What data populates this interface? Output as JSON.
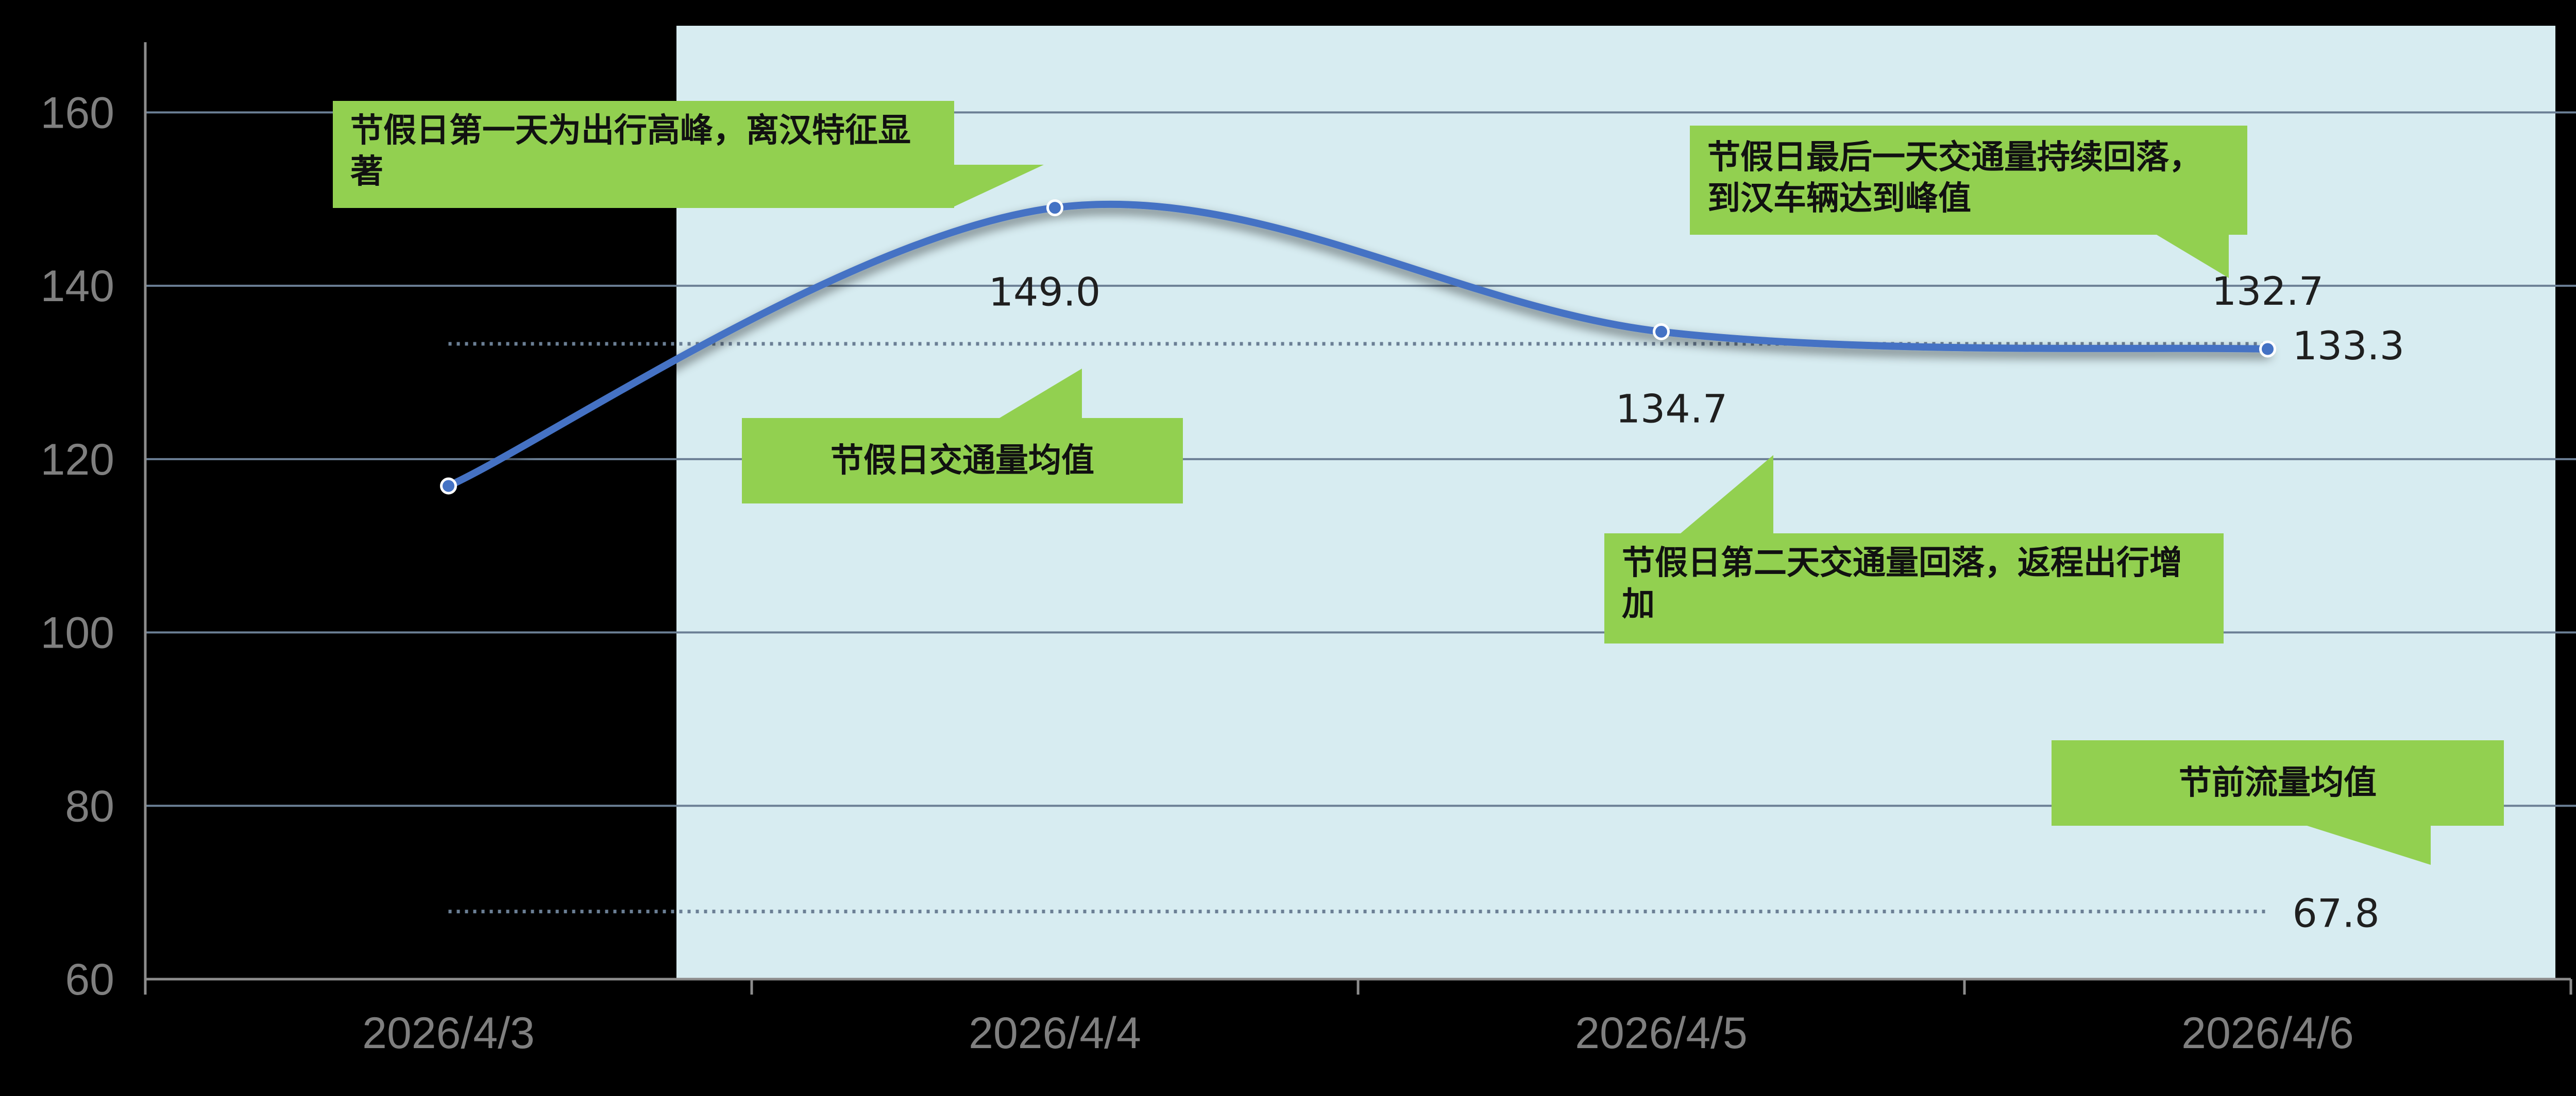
{
  "chart_data": {
    "type": "line",
    "categories": [
      "2026/4/3",
      "2026/4/4",
      "2026/4/5",
      "2026/4/6"
    ],
    "series": [
      {
        "values": [
          116.9,
          149.0,
          134.7,
          132.7
        ],
        "color": "#4472c4"
      }
    ],
    "reference_lines": [
      {
        "value": 133.3,
        "label": "133.3",
        "style": "dotted",
        "color": "#6b7f95"
      },
      {
        "value": 67.8,
        "label": "67.8",
        "style": "dotted",
        "color": "#6b7f95"
      }
    ],
    "data_labels": [
      {
        "index": 1,
        "label": "149.0"
      },
      {
        "index": 2,
        "label": "134.7"
      },
      {
        "index": 3,
        "label": "132.7"
      }
    ],
    "y_ticks": [
      "60",
      "80",
      "100",
      "120",
      "140",
      "160"
    ],
    "ylim": [
      60,
      170
    ],
    "grid": true,
    "highlight_band": {
      "from_category": "2026/4/4",
      "to_category": "2026/4/6",
      "color": "#d7ecf1"
    },
    "annotations": [
      "节假日第一天为出行高峰，离汉特征显著",
      "节假日交通量均值",
      "节假日第二天交通量回落，返程出行增加",
      "节假日最后一天交通量持续回落，到汉车辆达到峰值",
      "节前流量均值"
    ],
    "colors": {
      "background": "#000000",
      "band": "#d7ecf1",
      "line": "#4472c4",
      "callout": "#92d050",
      "grid": "#6b7f95",
      "axis_text": "#7f7f7f"
    }
  }
}
